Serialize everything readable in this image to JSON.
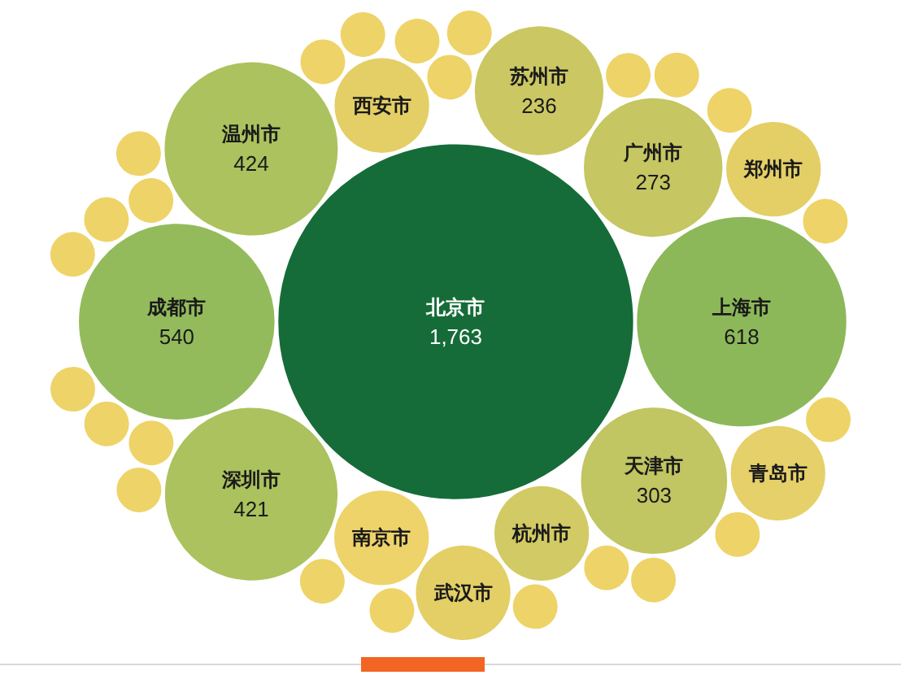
{
  "chart_data": {
    "type": "other",
    "categories": [
      "北京市",
      "上海市",
      "成都市",
      "温州市",
      "深圳市",
      "天津市",
      "广州市",
      "苏州市",
      "杭州市",
      "南京市",
      "西安市",
      "武汉市",
      "郑州市",
      "青岛市",
      null,
      null,
      null,
      null,
      null,
      null,
      null,
      null,
      null,
      null,
      null,
      null,
      null,
      null,
      null,
      null,
      null,
      null,
      null,
      null,
      null,
      null,
      null,
      null
    ],
    "values": [
      1763,
      618,
      540,
      424,
      421,
      303,
      273,
      236,
      null,
      null,
      null,
      null,
      null,
      null,
      null,
      null,
      null,
      null,
      null,
      null,
      null,
      null,
      null,
      null,
      null,
      null,
      null,
      null,
      null,
      null,
      null,
      null,
      null,
      null,
      null,
      null,
      null,
      null
    ],
    "value_labels": [
      "1,763",
      "618",
      "540",
      "424",
      "421",
      "303",
      "273",
      "236",
      null,
      null,
      null,
      null,
      null,
      null,
      null,
      null,
      null,
      null,
      null,
      null,
      null,
      null,
      null,
      null,
      null,
      null,
      null,
      null,
      null,
      null,
      null,
      null,
      null,
      null,
      null,
      null,
      null,
      null
    ],
    "colors": [
      "#156c38",
      "#8cb85a",
      "#93bb5c",
      "#abc25e",
      "#abc25e",
      "#c1c562",
      "#c6c662",
      "#cbc863",
      "#d2ca64",
      "#eed36a",
      "#e3cf66",
      "#e3cf66",
      "#e3cf66",
      "#e5d06a",
      "#eed368",
      "#eed368",
      "#eed368",
      "#eed368",
      "#eed368",
      "#eed368",
      "#eed368",
      "#eed368",
      "#eed368",
      "#eed368",
      "#eed368",
      "#eed368",
      "#eed368",
      "#eed368",
      "#eed368",
      "#eed368",
      "#eed368",
      "#eed368",
      "#eed368",
      "#eed368",
      "#eed368",
      "#eed368",
      "#eed368",
      "#eed368"
    ]
  }
}
